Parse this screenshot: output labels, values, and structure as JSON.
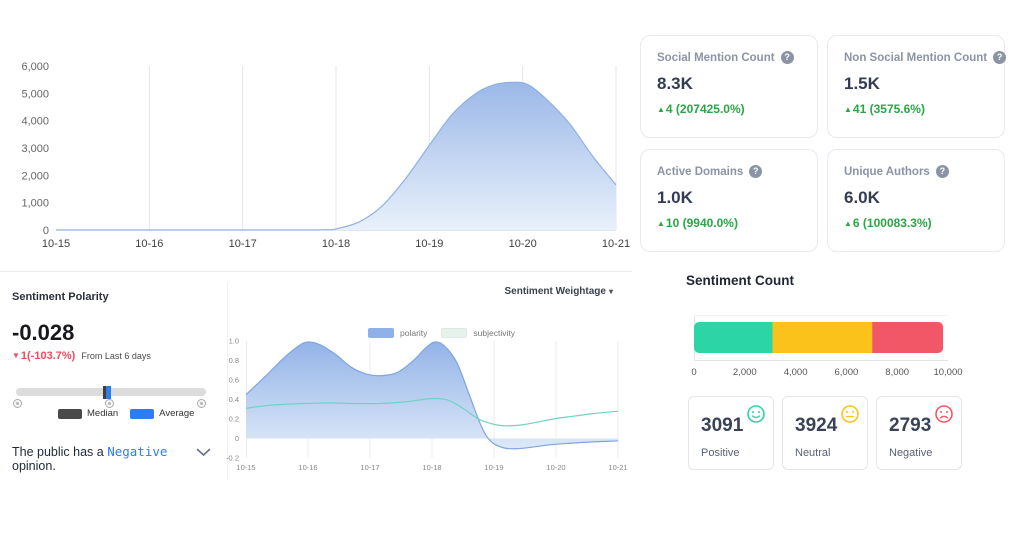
{
  "accent_colors": {
    "positive_teal": "#2bd5a5",
    "neutral_yellow": "#fcc21c",
    "negative_red": "#f25767",
    "change_green": "#28a745",
    "change_red": "#f24a5b",
    "link_blue": "#2e7df6",
    "area_blue": "#8fb0e8"
  },
  "stat_cards": [
    {
      "title": "Social Mention Count",
      "value": "8.3K",
      "change": "4 (207425.0%)",
      "direction": "up"
    },
    {
      "title": "Non Social Mention Count",
      "value": "1.5K",
      "change": "41 (3575.6%)",
      "direction": "up"
    },
    {
      "title": "Active Domains",
      "value": "1.0K",
      "change": "10 (9940.0%)",
      "direction": "up"
    },
    {
      "title": "Unique Authors",
      "value": "6.0K",
      "change": "6 (100083.3%)",
      "direction": "up"
    }
  ],
  "sentiment_polarity": {
    "title": "Sentiment Polarity",
    "value": "-0.028",
    "change": "1(-103.7%)",
    "period": "From Last 6 days",
    "legend_median": "Median",
    "legend_average": "Average",
    "opinion_prefix": "The public has a ",
    "opinion_word": "Negative",
    "opinion_suffix": " opinion."
  },
  "weightage": {
    "dropdown_label": "Sentiment Weightage",
    "legend": [
      {
        "label": "polarity",
        "color": "#8fb0e8"
      },
      {
        "label": "subjectivity",
        "color": "#e6f2ec"
      }
    ]
  },
  "sentiment_count": {
    "title": "Sentiment Count",
    "cards": [
      {
        "value": "3091",
        "label": "Positive",
        "mood": "positive"
      },
      {
        "value": "3924",
        "label": "Neutral",
        "mood": "neutral"
      },
      {
        "value": "2793",
        "label": "Negative",
        "mood": "negative"
      }
    ]
  },
  "chart_data": [
    {
      "id": "mentions",
      "type": "area",
      "title": "Mentions over time",
      "x_tick_labels": [
        "10-15",
        "10-16",
        "10-17",
        "10-18",
        "10-19",
        "10-20",
        "10-21"
      ],
      "x_domain": [
        0,
        6
      ],
      "y_tick_labels": [
        "0",
        "1,000",
        "2,000",
        "3,000",
        "4,000",
        "5,000",
        "6,000"
      ],
      "y_tick_values": [
        0,
        1000,
        2000,
        3000,
        4000,
        5000,
        6000
      ],
      "y_domain": [
        0,
        6000
      ],
      "grid": "vertical",
      "baseline": 0,
      "baseline_color": "#b8cdf1",
      "series": [
        {
          "name": "mentions",
          "type": "area",
          "color": "#8fb0e4",
          "fill_top": "#9bb8e8",
          "fill_bottom": "#e9f1fb",
          "base": 0,
          "points": [
            [
              0,
              0
            ],
            [
              0.5,
              0
            ],
            [
              1,
              0
            ],
            [
              1.5,
              0
            ],
            [
              2,
              0
            ],
            [
              2.4,
              0
            ],
            [
              2.7,
              0
            ],
            [
              2.9,
              10
            ],
            [
              3,
              40
            ],
            [
              3.25,
              300
            ],
            [
              3.5,
              900
            ],
            [
              3.75,
              1900
            ],
            [
              4,
              3100
            ],
            [
              4.25,
              4250
            ],
            [
              4.5,
              5000
            ],
            [
              4.7,
              5320
            ],
            [
              4.88,
              5400
            ],
            [
              5.05,
              5330
            ],
            [
              5.25,
              4800
            ],
            [
              5.5,
              3900
            ],
            [
              5.75,
              2700
            ],
            [
              6,
              1650
            ]
          ]
        }
      ]
    },
    {
      "id": "weightage",
      "type": "line-area",
      "title": "Sentiment Weightage",
      "legend_entries": [
        "polarity",
        "subjectivity"
      ],
      "x_tick_labels": [
        "10-15",
        "10-16",
        "10-17",
        "10-18",
        "10-19",
        "10-20",
        "10-21"
      ],
      "x_domain": [
        0,
        6
      ],
      "y_tick_labels": [
        "-0.2",
        "0",
        "0.2",
        "0.4",
        "0.6",
        "0.8",
        "1.0"
      ],
      "y_tick_values": [
        -0.2,
        0,
        0.2,
        0.4,
        0.6,
        0.8,
        1.0
      ],
      "y_domain": [
        -0.2,
        1.0
      ],
      "grid": "vertical",
      "series": [
        {
          "name": "polarity",
          "type": "area",
          "color": "#7fa5e0",
          "fill_top": "#93b3e8",
          "fill_bottom": "#dde9f8",
          "base": 0,
          "points": [
            [
              0,
              0.45
            ],
            [
              0.3,
              0.63
            ],
            [
              0.6,
              0.82
            ],
            [
              0.85,
              0.95
            ],
            [
              1,
              0.99
            ],
            [
              1.2,
              0.96
            ],
            [
              1.45,
              0.86
            ],
            [
              1.7,
              0.73
            ],
            [
              1.95,
              0.66
            ],
            [
              2.2,
              0.645
            ],
            [
              2.45,
              0.68
            ],
            [
              2.7,
              0.8
            ],
            [
              2.9,
              0.93
            ],
            [
              3.05,
              0.99
            ],
            [
              3.2,
              0.95
            ],
            [
              3.4,
              0.78
            ],
            [
              3.6,
              0.45
            ],
            [
              3.8,
              0.12
            ],
            [
              3.95,
              -0.03
            ],
            [
              4.15,
              -0.095
            ],
            [
              4.35,
              -0.105
            ],
            [
              4.6,
              -0.09
            ],
            [
              4.9,
              -0.065
            ],
            [
              5.2,
              -0.05
            ],
            [
              5.6,
              -0.035
            ],
            [
              6,
              -0.025
            ]
          ]
        },
        {
          "name": "subjectivity",
          "type": "line",
          "color": "#6fd3c3",
          "points": [
            [
              0,
              0.31
            ],
            [
              0.3,
              0.335
            ],
            [
              0.6,
              0.35
            ],
            [
              1,
              0.36
            ],
            [
              1.4,
              0.365
            ],
            [
              1.8,
              0.358
            ],
            [
              2.2,
              0.36
            ],
            [
              2.6,
              0.378
            ],
            [
              2.85,
              0.4
            ],
            [
              3.05,
              0.41
            ],
            [
              3.25,
              0.395
            ],
            [
              3.5,
              0.31
            ],
            [
              3.75,
              0.2
            ],
            [
              4,
              0.145
            ],
            [
              4.2,
              0.13
            ],
            [
              4.45,
              0.14
            ],
            [
              4.75,
              0.175
            ],
            [
              5,
              0.205
            ],
            [
              5.3,
              0.23
            ],
            [
              5.6,
              0.255
            ],
            [
              6,
              0.28
            ]
          ]
        }
      ]
    },
    {
      "id": "sentiment-stacked-bar",
      "type": "stacked-bar",
      "title": "Sentiment Count",
      "x_tick_labels": [
        "0",
        "2,000",
        "4,000",
        "6,000",
        "8,000",
        "10,000"
      ],
      "x_tick_values": [
        0,
        2000,
        4000,
        6000,
        8000,
        10000
      ],
      "x_domain": [
        0,
        10000
      ],
      "segments": [
        {
          "name": "positive",
          "value": 3091,
          "color": "#2bd5a5"
        },
        {
          "name": "neutral",
          "value": 3924,
          "color": "#fcc21c"
        },
        {
          "name": "negative",
          "value": 2793,
          "color": "#f25767"
        }
      ]
    }
  ]
}
